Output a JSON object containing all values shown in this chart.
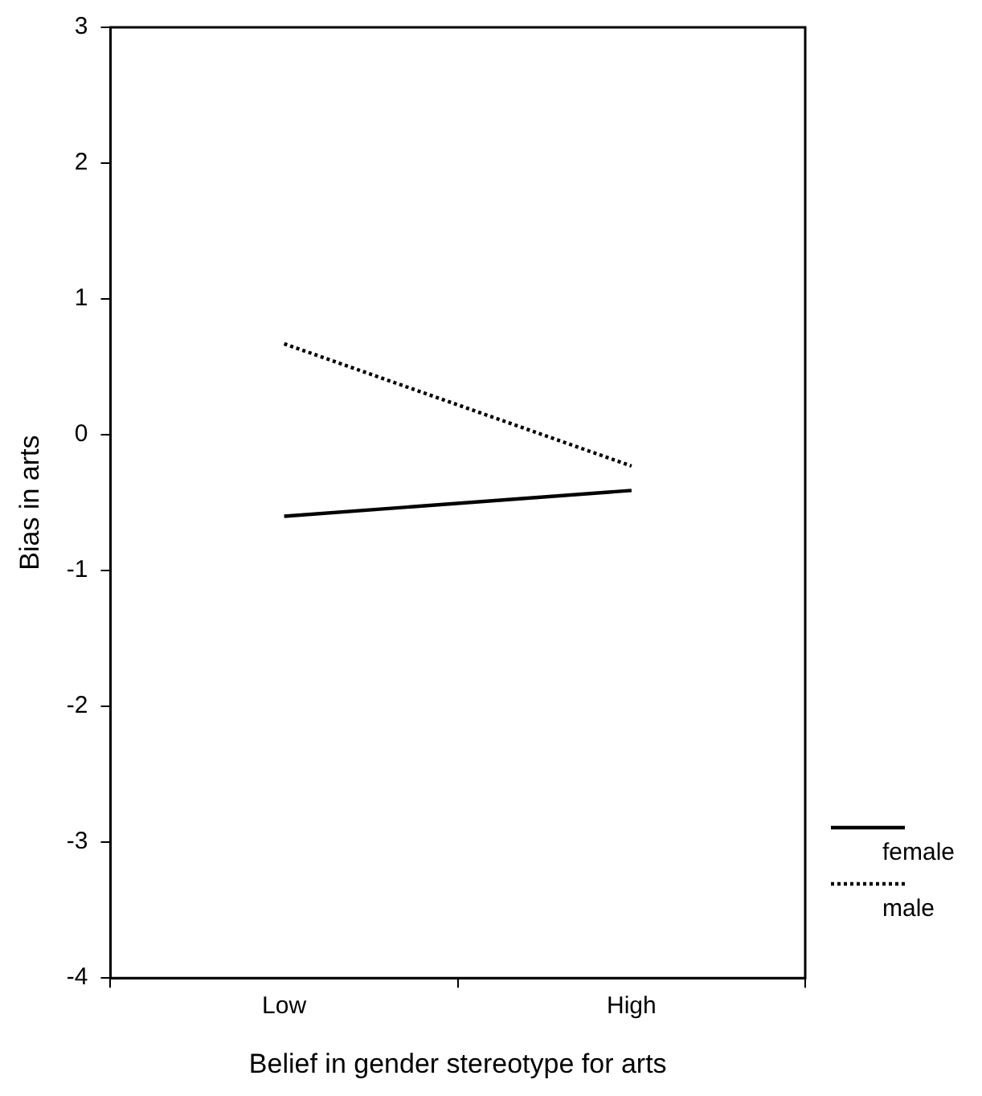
{
  "chart_data": {
    "type": "line",
    "xlabel": "Belief in gender stereotype for arts",
    "ylabel": "Bias in arts",
    "categories": [
      "Low",
      "High"
    ],
    "ylim": [
      -4,
      3
    ],
    "yticks": [
      -4,
      -3,
      -2,
      -1,
      0,
      1,
      2,
      3
    ],
    "series": [
      {
        "name": "female",
        "color": "#000000",
        "values": [
          -0.6,
          -0.41
        ],
        "line_style": "solid"
      },
      {
        "name": "male",
        "color": "#000000",
        "values": [
          0.67,
          -0.23
        ],
        "line_style": "dotted"
      }
    ],
    "grid": false,
    "legend": "bottom right",
    "marker": "none"
  }
}
